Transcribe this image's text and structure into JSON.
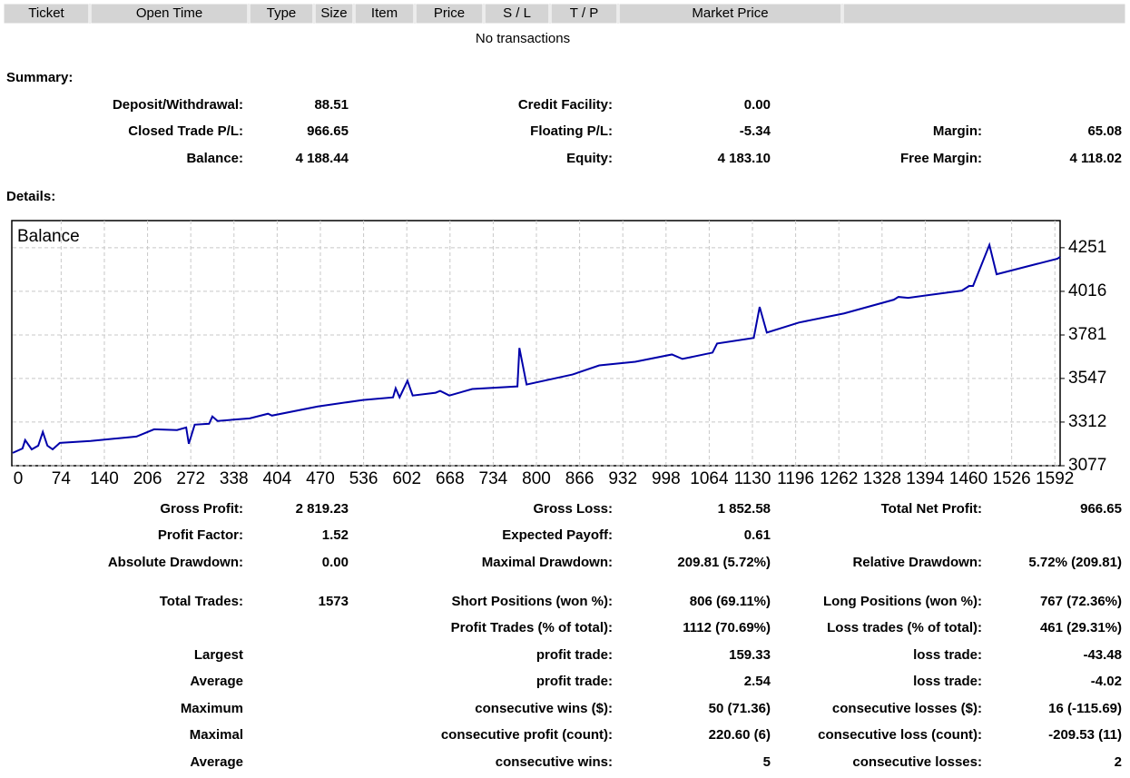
{
  "header": {
    "columns": [
      "Ticket",
      "Open Time",
      "Type",
      "Size",
      "Item",
      "Price",
      "S / L",
      "T / P",
      "Market Price"
    ]
  },
  "empty_message": "No transactions",
  "summary": {
    "title": "Summary:",
    "rows": [
      [
        "Deposit/Withdrawal:",
        "88.51",
        "Credit Facility:",
        "0.00",
        null,
        null
      ],
      [
        "Closed Trade P/L:",
        "966.65",
        "Floating P/L:",
        "-5.34",
        "Margin:",
        "65.08"
      ],
      [
        "Balance:",
        "4 188.44",
        "Equity:",
        "4 183.10",
        "Free Margin:",
        "4 118.02"
      ]
    ]
  },
  "details": {
    "title": "Details:",
    "rows": [
      [
        "Gross Profit:",
        "2 819.23",
        "Gross Loss:",
        "1 852.58",
        "Total Net Profit:",
        "966.65"
      ],
      [
        "Profit Factor:",
        "1.52",
        "Expected Payoff:",
        "0.61",
        null,
        null
      ],
      [
        "Absolute Drawdown:",
        "0.00",
        "Maximal Drawdown:",
        "209.81 (5.72%)",
        "Relative Drawdown:",
        "5.72% (209.81)"
      ],
      [
        "Total Trades:",
        "1573",
        "Short Positions (won %):",
        "806 (69.11%)",
        "Long Positions (won %):",
        "767 (72.36%)"
      ],
      [
        null,
        null,
        "Profit Trades (% of total):",
        "1112 (70.69%)",
        "Loss trades (% of total):",
        "461 (29.31%)"
      ],
      [
        "Largest",
        null,
        "profit trade:",
        "159.33",
        "loss trade:",
        "-43.48"
      ],
      [
        "Average",
        null,
        "profit trade:",
        "2.54",
        "loss trade:",
        "-4.02"
      ],
      [
        "Maximum",
        null,
        "consecutive wins ($):",
        "50 (71.36)",
        "consecutive losses ($):",
        "16 (-115.69)"
      ],
      [
        "Maximal",
        null,
        "consecutive profit (count):",
        "220.60 (6)",
        "consecutive loss (count):",
        "-209.53 (11)"
      ],
      [
        "Average",
        null,
        "consecutive wins:",
        "5",
        "consecutive losses:",
        "2"
      ]
    ]
  },
  "chart_data": {
    "type": "line",
    "x": [
      0,
      15,
      19,
      29,
      39,
      46,
      53,
      61,
      72,
      119,
      189,
      216,
      251,
      265,
      269,
      278,
      300,
      305,
      313,
      362,
      390,
      396,
      466,
      535,
      581,
      585,
      591,
      603,
      611,
      646,
      653,
      667,
      702,
      771,
      774,
      785,
      855,
      896,
      951,
      1007,
      1023,
      1069,
      1076,
      1132,
      1141,
      1152,
      1201,
      1270,
      1346,
      1353,
      1368,
      1450,
      1461,
      1467,
      1492,
      1503,
      1596,
      1600
    ],
    "series": [
      {
        "name": "Balance",
        "color": "#0000aa",
        "values": [
          3146,
          3170,
          3215,
          3165,
          3185,
          3259,
          3185,
          3165,
          3200,
          3210,
          3234,
          3273,
          3269,
          3283,
          3195,
          3298,
          3303,
          3342,
          3318,
          3332,
          3357,
          3347,
          3396,
          3431,
          3445,
          3494,
          3445,
          3534,
          3455,
          3470,
          3480,
          3455,
          3490,
          3504,
          3711,
          3514,
          3568,
          3617,
          3637,
          3676,
          3652,
          3686,
          3735,
          3765,
          3932,
          3794,
          3848,
          3897,
          3971,
          3986,
          3981,
          4020,
          4045,
          4045,
          4266,
          4108,
          4192,
          4202
        ]
      }
    ],
    "xlim": [
      0,
      1600
    ],
    "xticks": [
      0,
      74,
      140,
      206,
      272,
      338,
      404,
      470,
      536,
      602,
      668,
      734,
      800,
      866,
      932,
      998,
      1064,
      1130,
      1196,
      1262,
      1328,
      1394,
      1460,
      1526,
      1592
    ],
    "ylim": [
      3077,
      4397
    ],
    "yticks": [
      3077,
      3312,
      3547,
      3781,
      4016,
      4251
    ],
    "grid": true
  }
}
